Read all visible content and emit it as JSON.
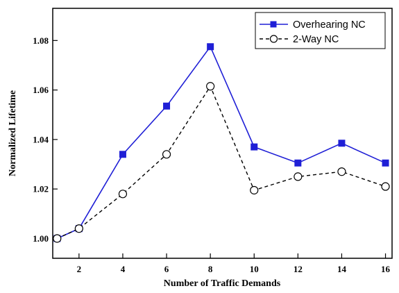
{
  "chart_data": {
    "type": "line",
    "xlabel": "Number of Traffic Demands",
    "ylabel": "Normalized Lifetime",
    "xlim": [
      0.8,
      16.3
    ],
    "ylim": [
      0.992,
      1.093
    ],
    "x_ticks": [
      2,
      4,
      6,
      8,
      10,
      12,
      14,
      16
    ],
    "y_ticks": [
      1.0,
      1.02,
      1.04,
      1.06,
      1.08
    ],
    "y_tick_labels": [
      "1.00",
      "1.02",
      "1.04",
      "1.06",
      "1.08"
    ],
    "grid": false,
    "legend_position": "top-right",
    "series": [
      {
        "name": "Overhearing NC",
        "color": "#1f1fd6",
        "line_style": "solid",
        "marker": "filled-square",
        "x": [
          1,
          2,
          4,
          6,
          8,
          10,
          12,
          14,
          16
        ],
        "y": [
          1.0,
          1.004,
          1.034,
          1.0535,
          1.0775,
          1.037,
          1.0305,
          1.0385,
          1.0305
        ]
      },
      {
        "name": "2-Way NC",
        "color": "#000000",
        "line_style": "dashed",
        "marker": "open-circle",
        "x": [
          1,
          2,
          4,
          6,
          8,
          10,
          12,
          14,
          16
        ],
        "y": [
          1.0,
          1.004,
          1.018,
          1.034,
          1.0615,
          1.0195,
          1.025,
          1.027,
          1.021
        ]
      }
    ]
  }
}
